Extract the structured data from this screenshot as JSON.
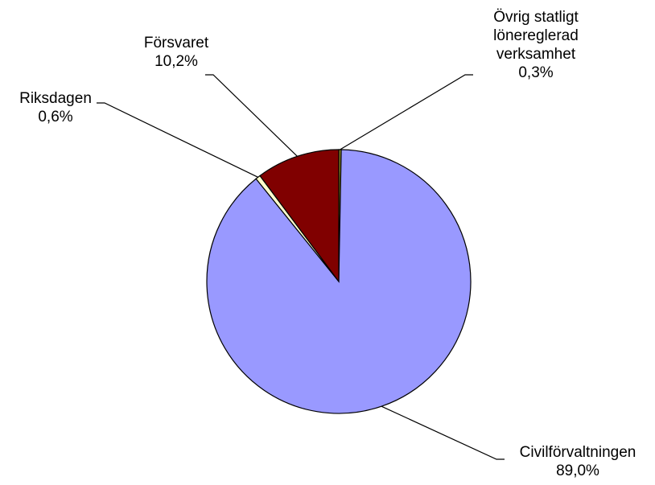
{
  "chart_data": {
    "type": "pie",
    "start_angle_deg": 0,
    "direction": "clockwise",
    "slices": [
      {
        "name_lines": [
          "Övrig statligt",
          "lönereglerad",
          "verksamhet"
        ],
        "value": 0.3,
        "value_label": "0,3%",
        "color": "#8a8a2a"
      },
      {
        "name_lines": [
          "Civilförvaltningen"
        ],
        "value": 89.0,
        "value_label": "89,0%",
        "color": "#9999ff"
      },
      {
        "name_lines": [
          "Riksdagen"
        ],
        "value": 0.6,
        "value_label": "0,6%",
        "color": "#ffffcc"
      },
      {
        "name_lines": [
          "Försvaret"
        ],
        "value": 10.2,
        "value_label": "10,2%",
        "color": "#800000"
      }
    ]
  }
}
